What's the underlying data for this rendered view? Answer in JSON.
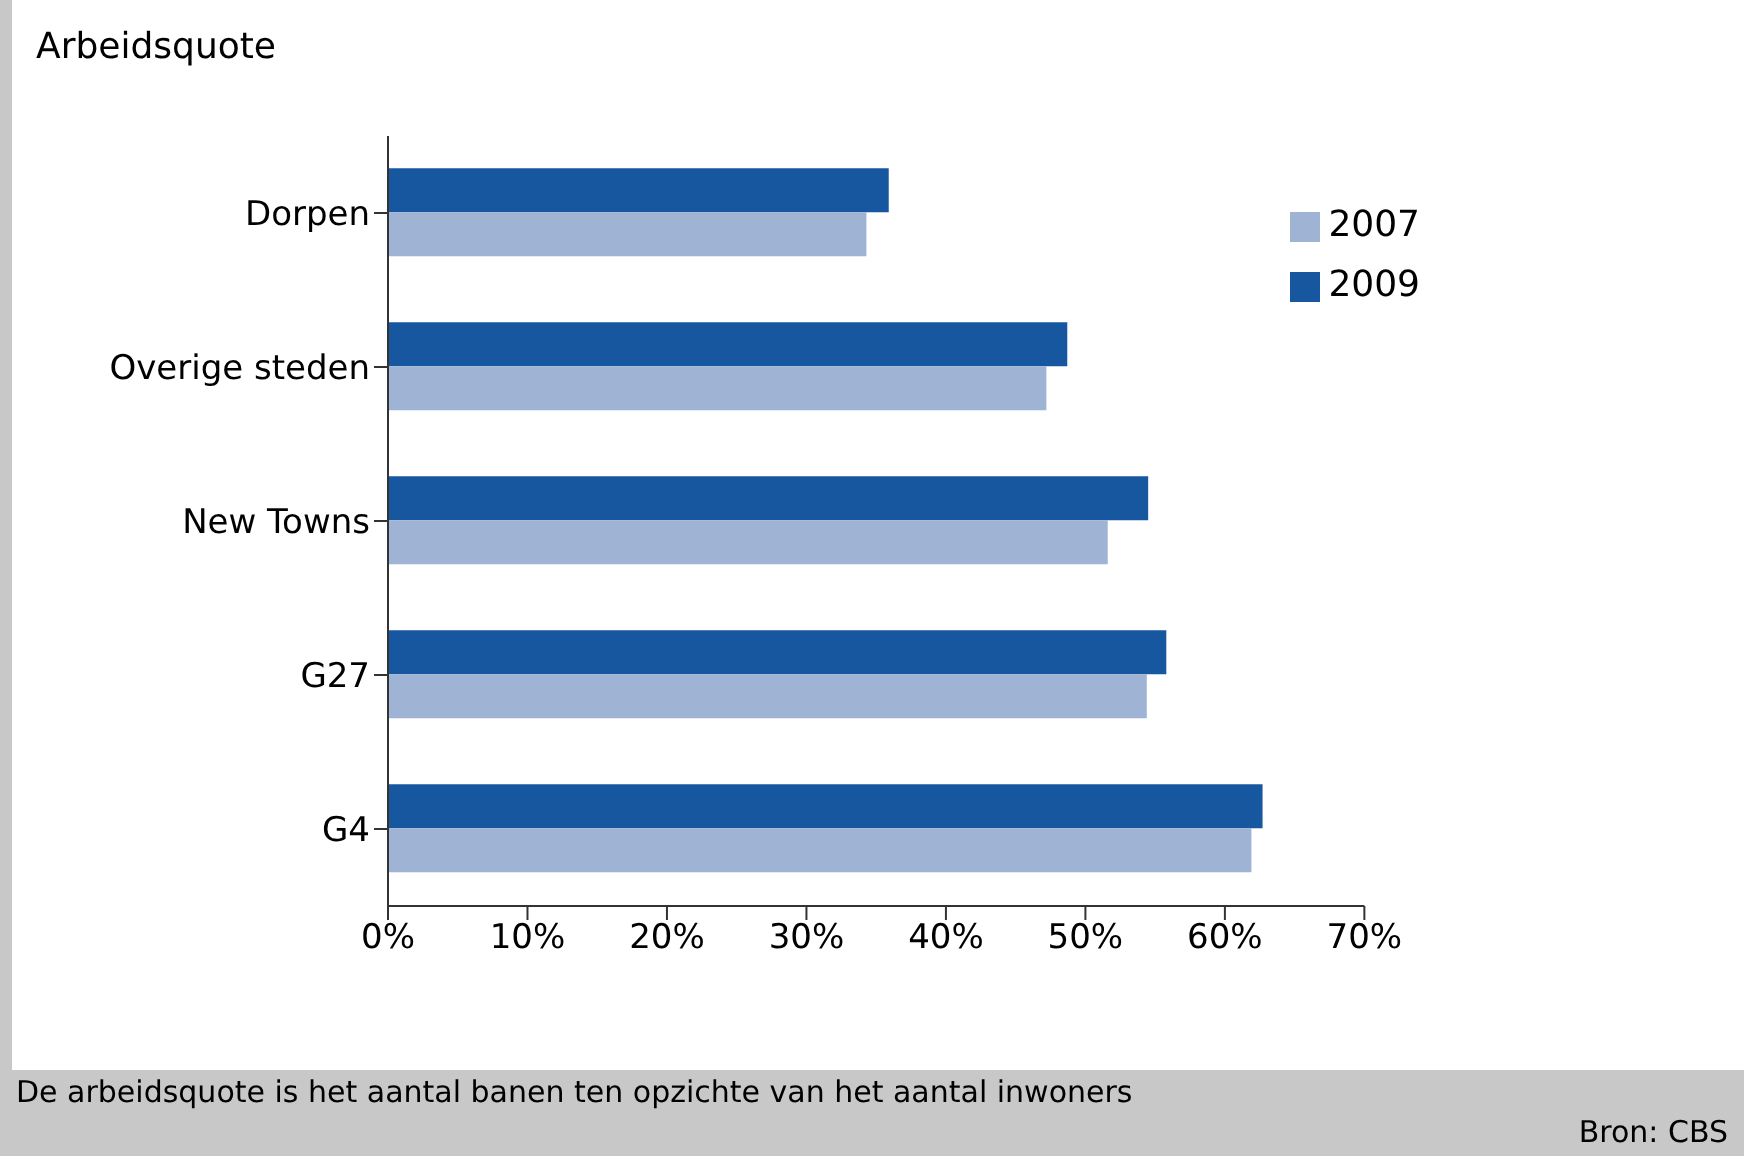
{
  "chart_data": {
    "type": "bar",
    "orientation": "horizontal",
    "title": "Arbeidsquote",
    "categories": [
      "Dorpen",
      "Overige steden",
      "New Towns",
      "G27",
      "G4"
    ],
    "series": [
      {
        "name": "2009",
        "color": "#1757a0",
        "values": [
          35.9,
          48.7,
          54.5,
          55.8,
          62.7
        ]
      },
      {
        "name": "2007",
        "color": "#9fb3d4",
        "values": [
          34.3,
          47.2,
          51.6,
          54.4,
          61.9
        ]
      }
    ],
    "xlim": [
      0,
      70
    ],
    "xticks": [
      {
        "value": 0,
        "label": "0%"
      },
      {
        "value": 10,
        "label": "10%"
      },
      {
        "value": 20,
        "label": "20%"
      },
      {
        "value": 30,
        "label": "30%"
      },
      {
        "value": 40,
        "label": "40%"
      },
      {
        "value": 50,
        "label": "50%"
      },
      {
        "value": 60,
        "label": "60%"
      },
      {
        "value": 70,
        "label": "70%"
      }
    ],
    "grid": false,
    "legend": "top right",
    "annotations": [
      "De arbeidsquote is het aantal banen ten opzichte van het aantal inwoners",
      "Bron: CBS"
    ]
  }
}
